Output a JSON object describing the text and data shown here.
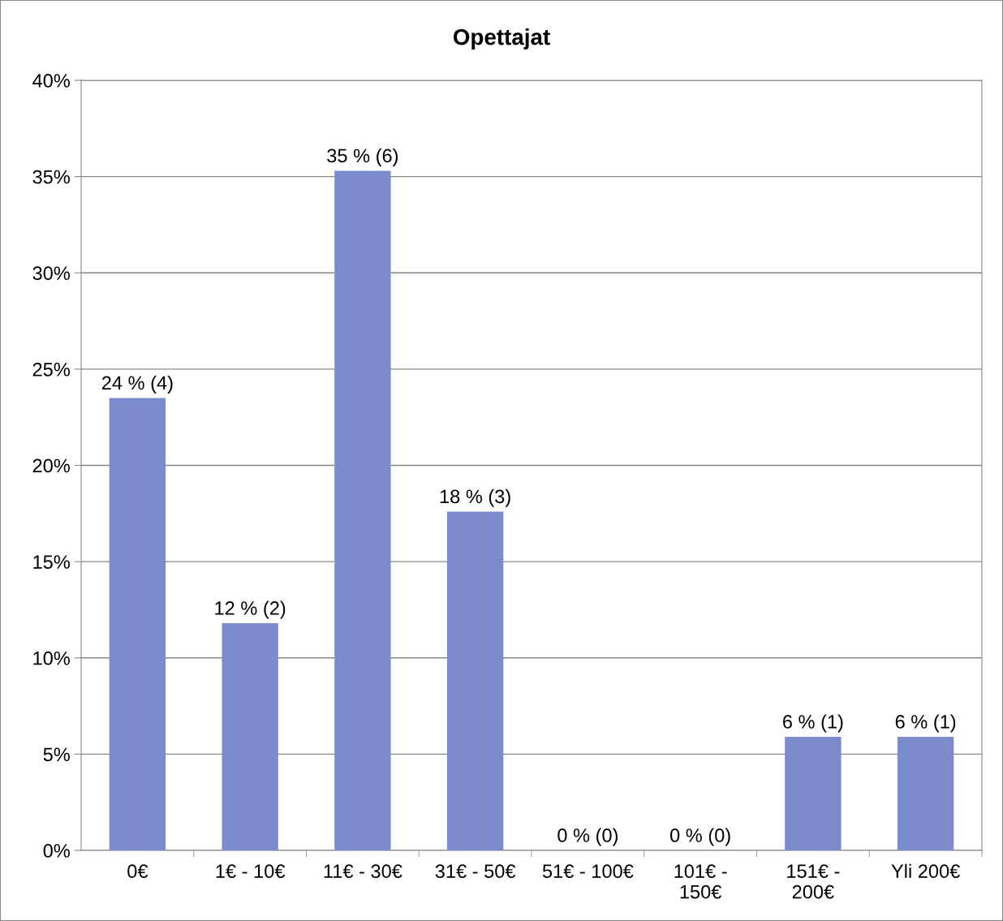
{
  "chart_data": {
    "type": "bar",
    "title": "Opettajat",
    "categories": [
      "0€",
      "1€ - 10€",
      "11€ - 30€",
      "31€ - 50€",
      "51€ - 100€",
      "101€ -\n150€",
      "151€ -\n200€",
      "Yli 200€"
    ],
    "values": [
      23.5,
      11.8,
      35.3,
      17.6,
      0,
      0,
      5.9,
      5.9
    ],
    "value_labels": [
      "24 % (4)",
      "12 % (2)",
      "35 % (6)",
      "18 % (3)",
      "0 % (0)",
      "0 % (0)",
      "6 % (1)",
      "6 % (1)"
    ],
    "color": "#7b8bce",
    "ylim": [
      0,
      40
    ],
    "yticks": [
      {
        "value": 0,
        "label": "0%"
      },
      {
        "value": 5,
        "label": "5%"
      },
      {
        "value": 10,
        "label": "10%"
      },
      {
        "value": 15,
        "label": "15%"
      },
      {
        "value": 20,
        "label": "20%"
      },
      {
        "value": 25,
        "label": "25%"
      },
      {
        "value": 30,
        "label": "30%"
      },
      {
        "value": 35,
        "label": "35%"
      },
      {
        "value": 40,
        "label": "40%"
      }
    ],
    "grid": "y"
  }
}
